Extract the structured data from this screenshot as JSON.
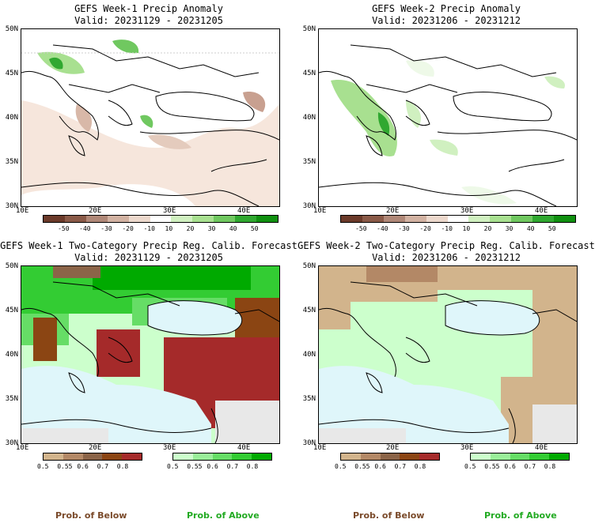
{
  "panels": [
    {
      "title": "GEFS Week-1 Precip Anomaly",
      "valid": "Valid: 20231129 - 20231205"
    },
    {
      "title": "GEFS Week-2 Precip Anomaly",
      "valid": "Valid: 20231206 - 20231212"
    },
    {
      "title": "GEFS Week-1 Two-Category Precip Reg. Calib. Forecast",
      "valid": "Valid: 20231129 - 20231205"
    },
    {
      "title": "GEFS Week-2 Two-Category Precip Reg. Calib. Forecast",
      "valid": "Valid: 20231206 - 20231212"
    }
  ],
  "lat_labels": [
    "50N",
    "45N",
    "40N",
    "35N",
    "30N"
  ],
  "lon_labels": [
    "10E",
    "20E",
    "30E",
    "40E"
  ],
  "anomaly_scale": {
    "labels": [
      "-50",
      "-40",
      "-30",
      "-20",
      "-10",
      "10",
      "20",
      "30",
      "40",
      "50"
    ],
    "colors": [
      "#6b3a2a",
      "#8a5a48",
      "#b08878",
      "#d2b2a2",
      "#ecd8cc",
      "#ffffff",
      "#d0f0c0",
      "#a8e090",
      "#70c860",
      "#30a830",
      "#109010"
    ]
  },
  "prob_below_scale": {
    "labels": [
      "0.5",
      "0.55",
      "0.6",
      "0.7",
      "0.8"
    ],
    "colors": [
      "#d2b48c",
      "#b38866",
      "#8b6448",
      "#8b4513",
      "#a52a2a"
    ]
  },
  "prob_above_scale": {
    "labels": [
      "0.5",
      "0.55",
      "0.6",
      "0.7",
      "0.8"
    ],
    "colors": [
      "#ccffcc",
      "#99ee99",
      "#66dd66",
      "#33cc33",
      "#00aa00"
    ]
  },
  "legend": {
    "below": "Prob. of Below",
    "above": "Prob. of Above",
    "below_color": "#7a4a2a",
    "above_color": "#22aa22"
  }
}
